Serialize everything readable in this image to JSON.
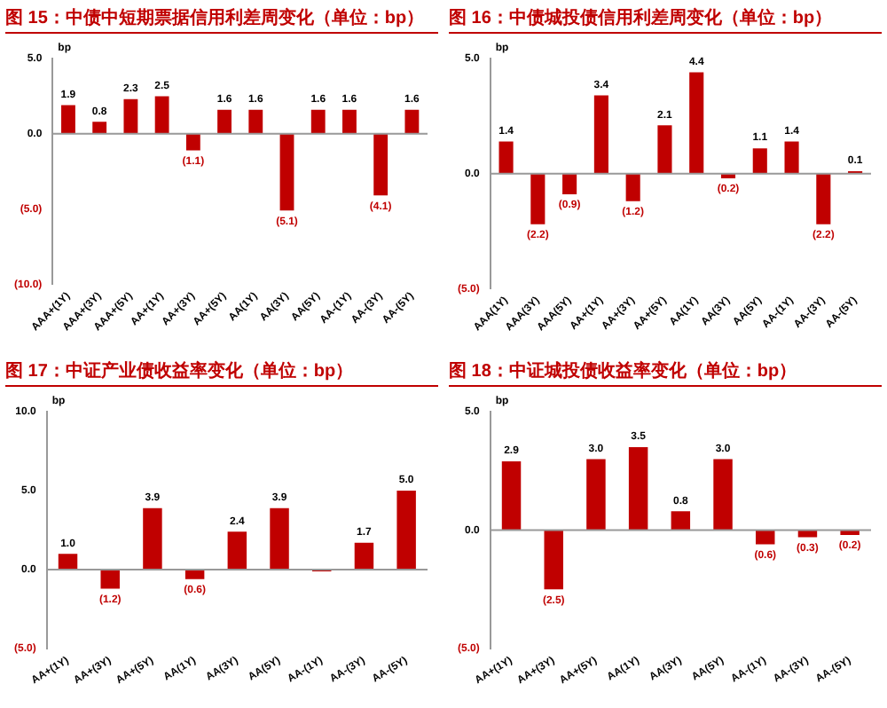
{
  "chart_data": [
    {
      "type": "bar",
      "title": "图 15：中债中短期票据信用利差周变化（单位：bp）",
      "ylabel": "bp",
      "categories": [
        "AAA+(1Y)",
        "AAA+(3Y)",
        "AAA+(5Y)",
        "AA+(1Y)",
        "AA+(3Y)",
        "AA+(5Y)",
        "AA(1Y)",
        "AA(3Y)",
        "AA(5Y)",
        "AA-(1Y)",
        "AA-(3Y)",
        "AA-(5Y)"
      ],
      "values": [
        1.9,
        0.8,
        2.3,
        2.5,
        -1.1,
        1.6,
        1.6,
        -5.1,
        1.6,
        1.6,
        -4.1,
        1.6
      ],
      "value_labels": [
        "1.9",
        "0.8",
        "2.3",
        "2.5",
        "(1.1)",
        "1.6",
        "1.6",
        "(5.1)",
        "1.6",
        "1.6",
        "(4.1)",
        "1.6"
      ],
      "color": "#c00000",
      "ylim": [
        -10,
        5
      ],
      "yticks": [
        {
          "value": -10,
          "label": "(10.0)"
        },
        {
          "value": -5,
          "label": "(5.0)"
        },
        {
          "value": 0,
          "label": "0.0"
        },
        {
          "value": 5,
          "label": "5.0"
        }
      ],
      "legend": false
    },
    {
      "type": "bar",
      "title": "图 16：中债城投债信用利差周变化（单位：bp）",
      "ylabel": "bp",
      "categories": [
        "AAA(1Y)",
        "AAA(3Y)",
        "AAA(5Y)",
        "AA+(1Y)",
        "AA+(3Y)",
        "AA+(5Y)",
        "AA(1Y)",
        "AA(3Y)",
        "AA(5Y)",
        "AA-(1Y)",
        "AA-(3Y)",
        "AA-(5Y)"
      ],
      "values": [
        1.4,
        -2.2,
        -0.9,
        3.4,
        -1.2,
        2.1,
        4.4,
        -0.2,
        1.1,
        1.4,
        -2.2,
        0.1
      ],
      "value_labels": [
        "1.4",
        "(2.2)",
        "(0.9)",
        "3.4",
        "(1.2)",
        "2.1",
        "4.4",
        "(0.2)",
        "1.1",
        "1.4",
        "(2.2)",
        "0.1"
      ],
      "color": "#c00000",
      "ylim": [
        -5,
        5
      ],
      "yticks": [
        {
          "value": -5,
          "label": "(5.0)"
        },
        {
          "value": 0,
          "label": "0.0"
        },
        {
          "value": 5,
          "label": "5.0"
        }
      ],
      "legend": false
    },
    {
      "type": "bar",
      "title": "图 17：中证产业债收益率变化（单位：bp）",
      "ylabel": "bp",
      "categories": [
        "AA+(1Y)",
        "AA+(3Y)",
        "AA+(5Y)",
        "AA(1Y)",
        "AA(3Y)",
        "AA(5Y)",
        "AA-(1Y)",
        "AA-(3Y)",
        "AA-(5Y)"
      ],
      "values": [
        1.0,
        -1.2,
        3.9,
        -0.6,
        2.4,
        3.9,
        -0.1,
        1.7,
        5.0
      ],
      "value_labels": [
        "1.0",
        "(1.2)",
        "3.9",
        "(0.6)",
        "2.4",
        "3.9",
        null,
        "1.7",
        "5.0"
      ],
      "color": "#c00000",
      "ylim": [
        -5,
        10
      ],
      "yticks": [
        {
          "value": -5,
          "label": "(5.0)"
        },
        {
          "value": 0,
          "label": "0.0"
        },
        {
          "value": 5,
          "label": "5.0"
        },
        {
          "value": 10,
          "label": "10.0"
        }
      ],
      "legend": false
    },
    {
      "type": "bar",
      "title": "图 18：中证城投债收益率变化（单位：bp）",
      "ylabel": "bp",
      "categories": [
        "AA+(1Y)",
        "AA+(3Y)",
        "AA+(5Y)",
        "AA(1Y)",
        "AA(3Y)",
        "AA(5Y)",
        "AA-(1Y)",
        "AA-(3Y)",
        "AA-(5Y)"
      ],
      "values": [
        2.9,
        -2.5,
        3.0,
        3.5,
        0.8,
        3.0,
        -0.6,
        -0.3,
        -0.2
      ],
      "value_labels": [
        "2.9",
        "(2.5)",
        "3.0",
        "3.5",
        "0.8",
        "3.0",
        "(0.6)",
        "(0.3)",
        "(0.2)"
      ],
      "color": "#c00000",
      "ylim": [
        -5,
        5
      ],
      "yticks": [
        {
          "value": -5,
          "label": "(5.0)"
        },
        {
          "value": 0,
          "label": "0.0"
        },
        {
          "value": 5,
          "label": "5.0"
        }
      ],
      "legend": false
    }
  ]
}
